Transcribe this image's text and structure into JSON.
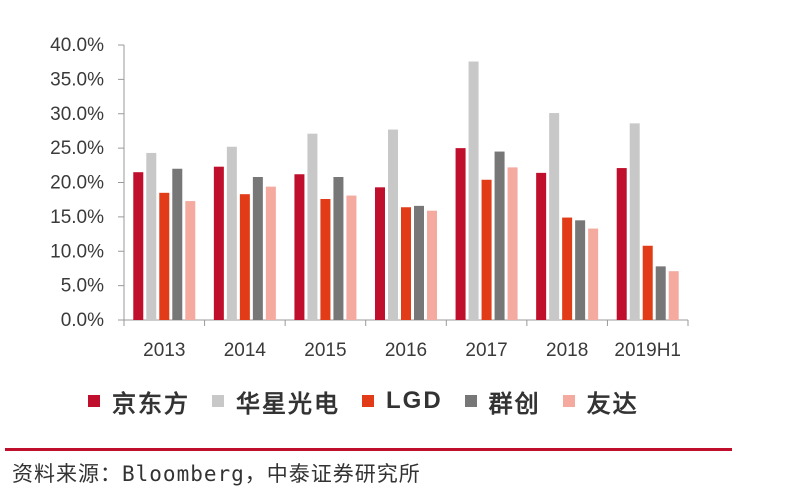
{
  "chart_data": {
    "type": "bar",
    "categories": [
      "2013",
      "2014",
      "2015",
      "2016",
      "2017",
      "2018",
      "2019H1"
    ],
    "series": [
      {
        "name": "京东方",
        "color": "#c00f2c",
        "values": [
          21.5,
          22.3,
          21.2,
          19.3,
          25.0,
          21.4,
          22.1
        ]
      },
      {
        "name": "华星光电",
        "color": "#c8c8c8",
        "values": [
          24.3,
          25.2,
          27.1,
          27.7,
          37.6,
          30.1,
          28.6
        ]
      },
      {
        "name": "LGD",
        "color": "#e23b17",
        "values": [
          18.5,
          18.3,
          17.6,
          16.4,
          20.4,
          14.9,
          10.8
        ]
      },
      {
        "name": "群创",
        "color": "#777777",
        "values": [
          22.0,
          20.8,
          20.8,
          16.6,
          24.5,
          14.5,
          7.8
        ]
      },
      {
        "name": "友达",
        "color": "#f5aaa0",
        "values": [
          17.3,
          19.4,
          18.1,
          15.9,
          22.2,
          13.3,
          7.1
        ]
      }
    ],
    "ylim": [
      0,
      40
    ],
    "yticks": [
      0,
      5,
      10,
      15,
      20,
      25,
      30,
      35,
      40
    ],
    "ytick_labels": [
      "0.0%",
      "5.0%",
      "10.0%",
      "15.0%",
      "20.0%",
      "25.0%",
      "30.0%",
      "35.0%",
      "40.0%"
    ],
    "grid": false,
    "legend_position": "bottom"
  },
  "source": {
    "text": "资料来源：Bloomberg，中泰证券研究所",
    "rule_color": "#c00f2c"
  }
}
